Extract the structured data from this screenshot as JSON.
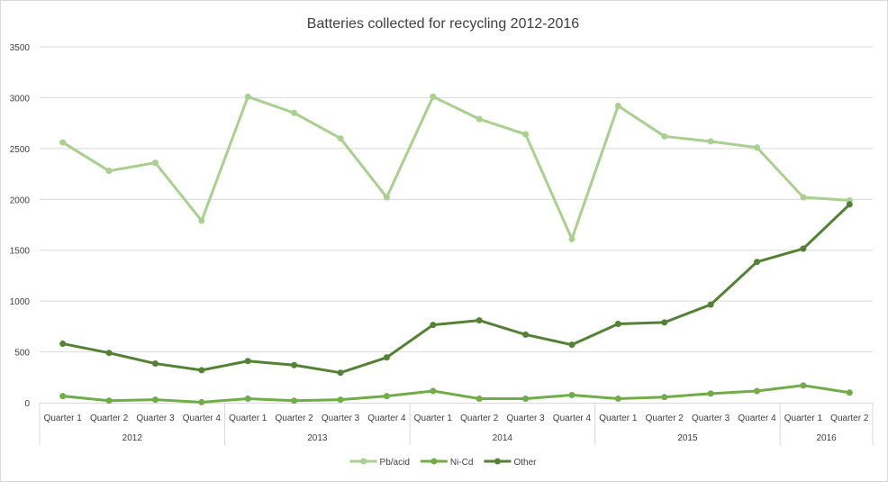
{
  "chart_data": {
    "type": "line",
    "title": "Batteries collected for recycling 2012-2016",
    "xlabel": "",
    "ylabel": "",
    "ylim": [
      0,
      3500
    ],
    "yticks": [
      "0",
      "500",
      "1000",
      "1500",
      "2000",
      "2500",
      "3000",
      "3500"
    ],
    "grid": true,
    "legend_position": "bottom",
    "categories": [
      "Quarter 1",
      "Quarter 2",
      "Quarter 3",
      "Quarter 4",
      "Quarter 1",
      "Quarter 2",
      "Quarter 3",
      "Quarter 4",
      "Quarter 1",
      "Quarter 2",
      "Quarter 3",
      "Quarter 4",
      "Quarter 1",
      "Quarter 2",
      "Quarter 3",
      "Quarter 4",
      "Quarter 1",
      "Quarter 2"
    ],
    "groups": [
      {
        "label": "2012",
        "count": 4
      },
      {
        "label": "2013",
        "count": 4
      },
      {
        "label": "2014",
        "count": 4
      },
      {
        "label": "2015",
        "count": 4
      },
      {
        "label": "2016",
        "count": 2
      }
    ],
    "series": [
      {
        "name": "Pb/acid",
        "color": "#a9d08e",
        "values": [
          2560,
          2280,
          2360,
          1790,
          3010,
          2850,
          2600,
          2020,
          3010,
          2790,
          2640,
          1610,
          2920,
          2620,
          2570,
          2510,
          2020,
          1990
        ]
      },
      {
        "name": "Ni-Cd",
        "color": "#70ad47",
        "values": [
          65,
          20,
          30,
          5,
          40,
          20,
          30,
          65,
          115,
          40,
          40,
          75,
          40,
          55,
          90,
          115,
          170,
          100
        ]
      },
      {
        "name": "Other",
        "color": "#548235",
        "values": [
          580,
          490,
          385,
          320,
          410,
          370,
          295,
          445,
          765,
          810,
          670,
          570,
          775,
          790,
          965,
          1385,
          1515,
          1950
        ]
      }
    ]
  }
}
